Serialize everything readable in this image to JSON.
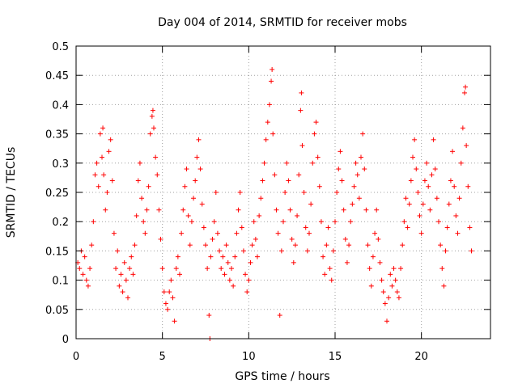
{
  "chart_data": {
    "type": "scatter",
    "title": "Day 004 of 2014, SRMTID for receiver mobs",
    "xlabel": "GPS time / hours",
    "ylabel": "SRMTID / TECUs",
    "xlim": [
      0,
      24
    ],
    "ylim": [
      0,
      0.5
    ],
    "xticks": [
      0,
      5,
      10,
      15,
      20
    ],
    "xtick_labels": [
      "0",
      "5",
      "10",
      "15",
      "20"
    ],
    "yticks": [
      0,
      0.05,
      0.1,
      0.15,
      0.2,
      0.25,
      0.3,
      0.35,
      0.4,
      0.45,
      0.5
    ],
    "ytick_labels": [
      "0",
      "0.05",
      "0.1",
      "0.15",
      "0.2",
      "0.25",
      "0.3",
      "0.35",
      "0.4",
      "0.45",
      "0.5"
    ],
    "grid": true,
    "marker": "+",
    "color": "#ff0000",
    "series": [
      {
        "name": "SRMTID",
        "points": [
          [
            0.1,
            0.13
          ],
          [
            0.2,
            0.12
          ],
          [
            0.3,
            0.15
          ],
          [
            0.4,
            0.11
          ],
          [
            0.5,
            0.14
          ],
          [
            0.6,
            0.1
          ],
          [
            0.7,
            0.09
          ],
          [
            0.8,
            0.12
          ],
          [
            0.9,
            0.16
          ],
          [
            1.0,
            0.2
          ],
          [
            1.1,
            0.28
          ],
          [
            1.2,
            0.3
          ],
          [
            1.3,
            0.26
          ],
          [
            1.4,
            0.35
          ],
          [
            1.5,
            0.31
          ],
          [
            1.55,
            0.36
          ],
          [
            1.6,
            0.28
          ],
          [
            1.7,
            0.22
          ],
          [
            1.8,
            0.25
          ],
          [
            1.9,
            0.32
          ],
          [
            2.0,
            0.34
          ],
          [
            2.1,
            0.27
          ],
          [
            2.2,
            0.18
          ],
          [
            2.3,
            0.12
          ],
          [
            2.4,
            0.15
          ],
          [
            2.5,
            0.09
          ],
          [
            2.6,
            0.11
          ],
          [
            2.7,
            0.08
          ],
          [
            2.8,
            0.13
          ],
          [
            2.9,
            0.1
          ],
          [
            3.0,
            0.07
          ],
          [
            3.1,
            0.12
          ],
          [
            3.2,
            0.14
          ],
          [
            3.3,
            0.11
          ],
          [
            3.4,
            0.16
          ],
          [
            3.5,
            0.21
          ],
          [
            3.6,
            0.27
          ],
          [
            3.7,
            0.3
          ],
          [
            3.8,
            0.24
          ],
          [
            3.9,
            0.2
          ],
          [
            4.0,
            0.18
          ],
          [
            4.1,
            0.22
          ],
          [
            4.2,
            0.26
          ],
          [
            4.3,
            0.35
          ],
          [
            4.4,
            0.38
          ],
          [
            4.45,
            0.39
          ],
          [
            4.5,
            0.36
          ],
          [
            4.6,
            0.31
          ],
          [
            4.7,
            0.28
          ],
          [
            4.8,
            0.22
          ],
          [
            4.9,
            0.17
          ],
          [
            5.0,
            0.12
          ],
          [
            5.1,
            0.08
          ],
          [
            5.2,
            0.06
          ],
          [
            5.3,
            0.05
          ],
          [
            5.4,
            0.08
          ],
          [
            5.5,
            0.1
          ],
          [
            5.6,
            0.07
          ],
          [
            5.7,
            0.03
          ],
          [
            5.8,
            0.12
          ],
          [
            5.9,
            0.14
          ],
          [
            6.0,
            0.11
          ],
          [
            6.1,
            0.18
          ],
          [
            6.2,
            0.22
          ],
          [
            6.3,
            0.26
          ],
          [
            6.4,
            0.29
          ],
          [
            6.5,
            0.21
          ],
          [
            6.6,
            0.16
          ],
          [
            6.7,
            0.2
          ],
          [
            6.8,
            0.24
          ],
          [
            6.9,
            0.27
          ],
          [
            7.0,
            0.31
          ],
          [
            7.1,
            0.34
          ],
          [
            7.2,
            0.29
          ],
          [
            7.3,
            0.23
          ],
          [
            7.4,
            0.19
          ],
          [
            7.5,
            0.16
          ],
          [
            7.6,
            0.12
          ],
          [
            7.7,
            0.04
          ],
          [
            7.75,
            0.0
          ],
          [
            7.8,
            0.14
          ],
          [
            7.9,
            0.17
          ],
          [
            8.0,
            0.2
          ],
          [
            8.1,
            0.25
          ],
          [
            8.2,
            0.18
          ],
          [
            8.3,
            0.15
          ],
          [
            8.4,
            0.12
          ],
          [
            8.5,
            0.14
          ],
          [
            8.6,
            0.11
          ],
          [
            8.7,
            0.16
          ],
          [
            8.8,
            0.13
          ],
          [
            8.9,
            0.1
          ],
          [
            9.0,
            0.12
          ],
          [
            9.1,
            0.09
          ],
          [
            9.2,
            0.14
          ],
          [
            9.3,
            0.18
          ],
          [
            9.4,
            0.22
          ],
          [
            9.5,
            0.25
          ],
          [
            9.6,
            0.19
          ],
          [
            9.7,
            0.15
          ],
          [
            9.8,
            0.11
          ],
          [
            9.9,
            0.08
          ],
          [
            10.0,
            0.1
          ],
          [
            10.1,
            0.13
          ],
          [
            10.2,
            0.16
          ],
          [
            10.3,
            0.2
          ],
          [
            10.4,
            0.17
          ],
          [
            10.5,
            0.14
          ],
          [
            10.6,
            0.21
          ],
          [
            10.7,
            0.24
          ],
          [
            10.8,
            0.27
          ],
          [
            10.9,
            0.3
          ],
          [
            11.0,
            0.34
          ],
          [
            11.1,
            0.37
          ],
          [
            11.2,
            0.4
          ],
          [
            11.3,
            0.44
          ],
          [
            11.35,
            0.46
          ],
          [
            11.4,
            0.35
          ],
          [
            11.5,
            0.28
          ],
          [
            11.6,
            0.22
          ],
          [
            11.7,
            0.18
          ],
          [
            11.8,
            0.04
          ],
          [
            11.9,
            0.15
          ],
          [
            12.0,
            0.2
          ],
          [
            12.1,
            0.25
          ],
          [
            12.2,
            0.3
          ],
          [
            12.3,
            0.27
          ],
          [
            12.4,
            0.22
          ],
          [
            12.5,
            0.17
          ],
          [
            12.6,
            0.13
          ],
          [
            12.7,
            0.16
          ],
          [
            12.8,
            0.21
          ],
          [
            12.9,
            0.28
          ],
          [
            13.0,
            0.39
          ],
          [
            13.05,
            0.42
          ],
          [
            13.1,
            0.33
          ],
          [
            13.2,
            0.25
          ],
          [
            13.3,
            0.19
          ],
          [
            13.4,
            0.15
          ],
          [
            13.5,
            0.18
          ],
          [
            13.6,
            0.23
          ],
          [
            13.7,
            0.3
          ],
          [
            13.8,
            0.35
          ],
          [
            13.9,
            0.37
          ],
          [
            14.0,
            0.31
          ],
          [
            14.1,
            0.26
          ],
          [
            14.2,
            0.2
          ],
          [
            14.3,
            0.14
          ],
          [
            14.4,
            0.11
          ],
          [
            14.5,
            0.16
          ],
          [
            14.6,
            0.19
          ],
          [
            14.7,
            0.12
          ],
          [
            14.8,
            0.1
          ],
          [
            14.9,
            0.15
          ],
          [
            15.0,
            0.2
          ],
          [
            15.1,
            0.25
          ],
          [
            15.2,
            0.29
          ],
          [
            15.3,
            0.32
          ],
          [
            15.4,
            0.27
          ],
          [
            15.5,
            0.22
          ],
          [
            15.6,
            0.17
          ],
          [
            15.7,
            0.13
          ],
          [
            15.8,
            0.16
          ],
          [
            15.9,
            0.2
          ],
          [
            16.0,
            0.23
          ],
          [
            16.1,
            0.26
          ],
          [
            16.2,
            0.3
          ],
          [
            16.3,
            0.28
          ],
          [
            16.4,
            0.24
          ],
          [
            16.5,
            0.31
          ],
          [
            16.6,
            0.35
          ],
          [
            16.7,
            0.29
          ],
          [
            16.8,
            0.22
          ],
          [
            16.9,
            0.16
          ],
          [
            17.0,
            0.12
          ],
          [
            17.1,
            0.09
          ],
          [
            17.2,
            0.14
          ],
          [
            17.3,
            0.18
          ],
          [
            17.4,
            0.22
          ],
          [
            17.5,
            0.17
          ],
          [
            17.6,
            0.13
          ],
          [
            17.7,
            0.1
          ],
          [
            17.8,
            0.08
          ],
          [
            17.9,
            0.06
          ],
          [
            18.0,
            0.03
          ],
          [
            18.1,
            0.07
          ],
          [
            18.2,
            0.11
          ],
          [
            18.3,
            0.09
          ],
          [
            18.4,
            0.12
          ],
          [
            18.5,
            0.1
          ],
          [
            18.6,
            0.08
          ],
          [
            18.7,
            0.07
          ],
          [
            18.8,
            0.12
          ],
          [
            18.9,
            0.16
          ],
          [
            19.0,
            0.2
          ],
          [
            19.1,
            0.24
          ],
          [
            19.2,
            0.19
          ],
          [
            19.3,
            0.23
          ],
          [
            19.4,
            0.27
          ],
          [
            19.5,
            0.31
          ],
          [
            19.6,
            0.34
          ],
          [
            19.7,
            0.29
          ],
          [
            19.8,
            0.25
          ],
          [
            19.9,
            0.21
          ],
          [
            20.0,
            0.18
          ],
          [
            20.1,
            0.23
          ],
          [
            20.2,
            0.27
          ],
          [
            20.3,
            0.3
          ],
          [
            20.4,
            0.26
          ],
          [
            20.5,
            0.22
          ],
          [
            20.6,
            0.28
          ],
          [
            20.7,
            0.34
          ],
          [
            20.8,
            0.29
          ],
          [
            20.9,
            0.24
          ],
          [
            21.0,
            0.2
          ],
          [
            21.1,
            0.16
          ],
          [
            21.2,
            0.12
          ],
          [
            21.3,
            0.09
          ],
          [
            21.4,
            0.15
          ],
          [
            21.5,
            0.19
          ],
          [
            21.6,
            0.23
          ],
          [
            21.7,
            0.27
          ],
          [
            21.8,
            0.32
          ],
          [
            21.9,
            0.26
          ],
          [
            22.0,
            0.21
          ],
          [
            22.1,
            0.18
          ],
          [
            22.2,
            0.24
          ],
          [
            22.3,
            0.3
          ],
          [
            22.4,
            0.36
          ],
          [
            22.5,
            0.42
          ],
          [
            22.55,
            0.43
          ],
          [
            22.6,
            0.33
          ],
          [
            22.7,
            0.26
          ],
          [
            22.8,
            0.19
          ],
          [
            22.9,
            0.15
          ]
        ]
      }
    ]
  }
}
